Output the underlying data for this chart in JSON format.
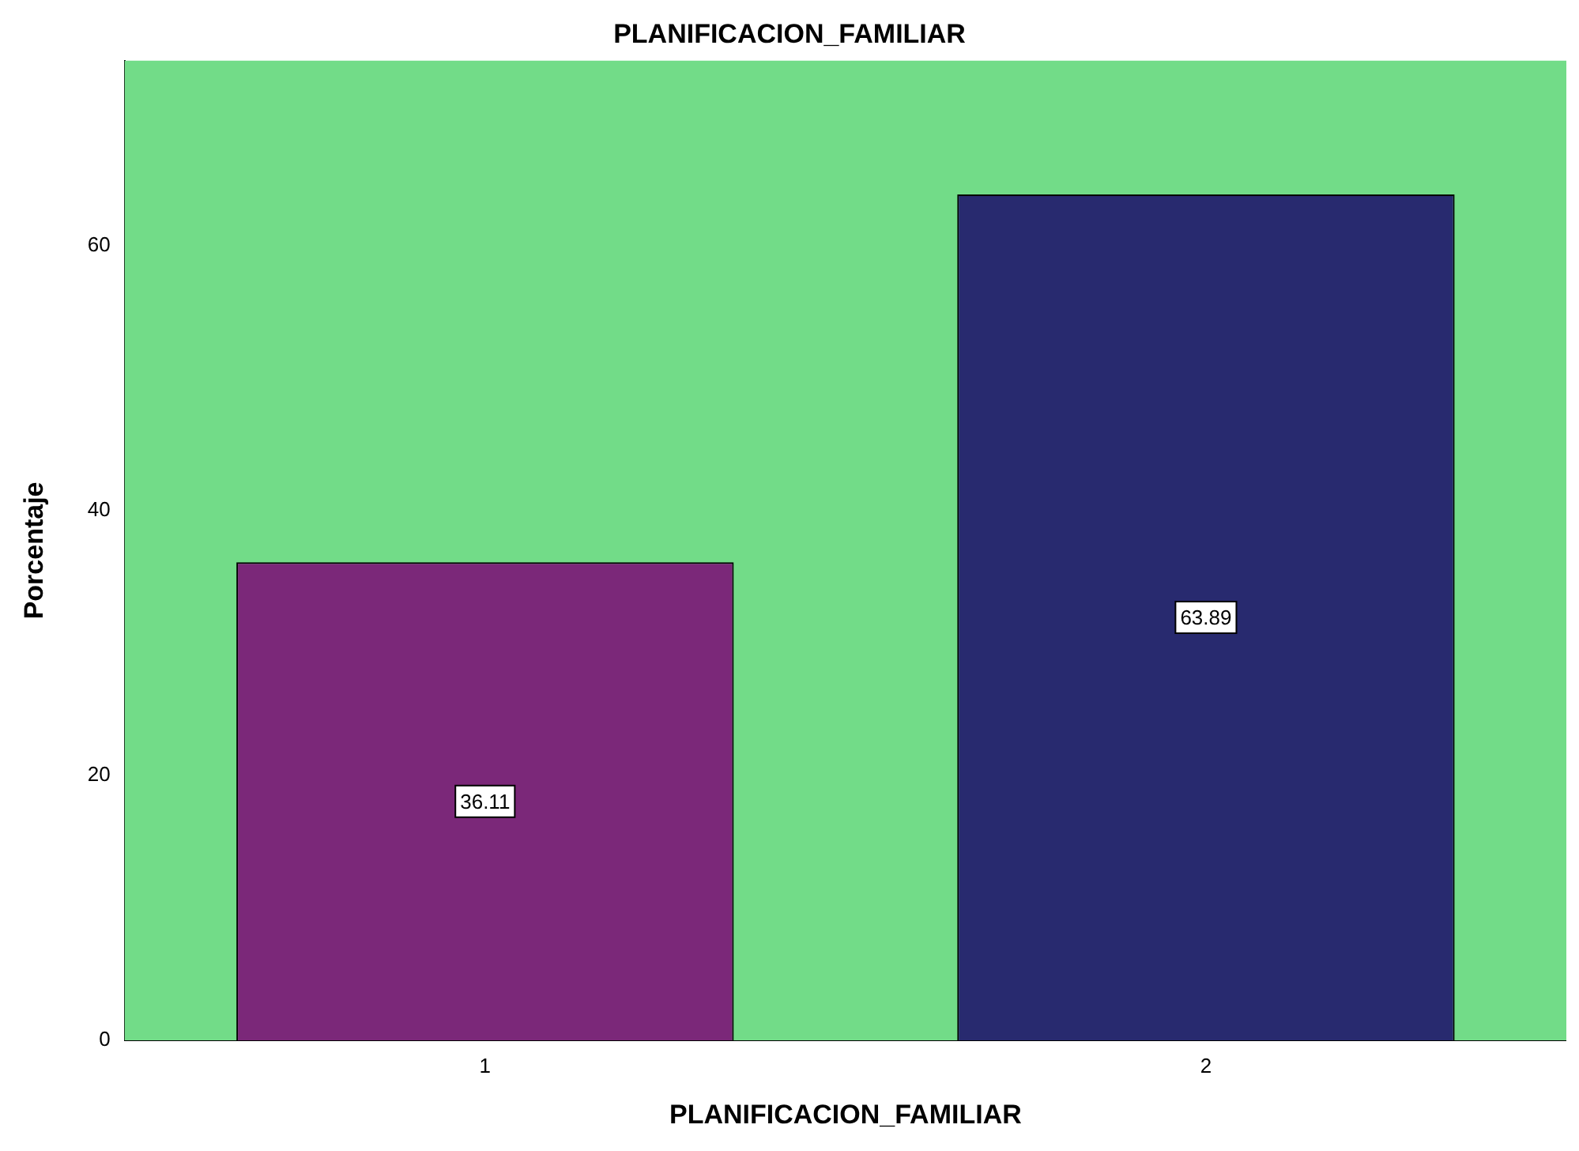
{
  "chart_data": {
    "type": "bar",
    "title": "PLANIFICACION_FAMILIAR",
    "xlabel": "PLANIFICACION_FAMILIAR",
    "ylabel": "Porcentaje",
    "categories": [
      "1",
      "2"
    ],
    "values": [
      36.11,
      63.89
    ],
    "colors": [
      "#7b2879",
      "#282a6f"
    ],
    "ylim": [
      0,
      74
    ],
    "yticks": [
      0,
      20,
      40,
      60
    ],
    "grid": false,
    "data_labels": true,
    "legend": false
  }
}
